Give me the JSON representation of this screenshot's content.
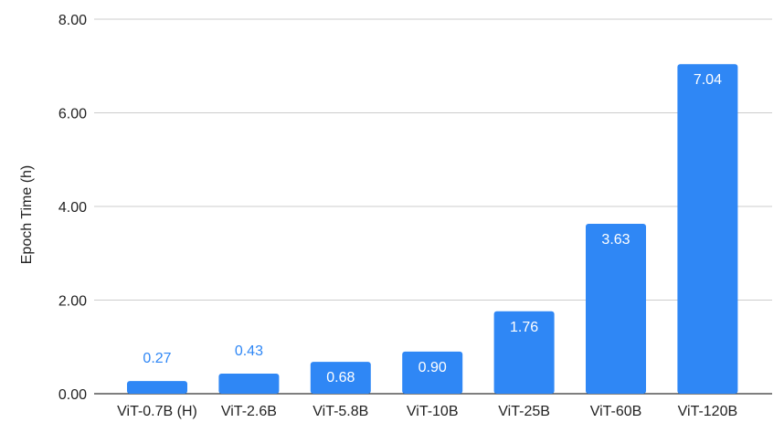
{
  "chart_data": {
    "type": "bar",
    "title": "",
    "xlabel": "",
    "ylabel": "Epoch Time (h)",
    "ylim": [
      0,
      8
    ],
    "yticks": [
      "0.00",
      "2.00",
      "4.00",
      "6.00",
      "8.00"
    ],
    "grid": true,
    "legend": "none",
    "categories": [
      "ViT-0.7B (H)",
      "ViT-2.6B",
      "ViT-5.8B",
      "ViT-10B",
      "ViT-25B",
      "ViT-60B",
      "ViT-120B"
    ],
    "values": [
      0.27,
      0.43,
      0.68,
      0.9,
      1.76,
      3.63,
      7.04
    ],
    "value_labels": [
      "0.27",
      "0.43",
      "0.68",
      "0.90",
      "1.76",
      "3.63",
      "7.04"
    ],
    "bar_color": "#2f87f5",
    "inside_label_color": "#ffffff",
    "outside_label_color": "#2f87f5"
  }
}
